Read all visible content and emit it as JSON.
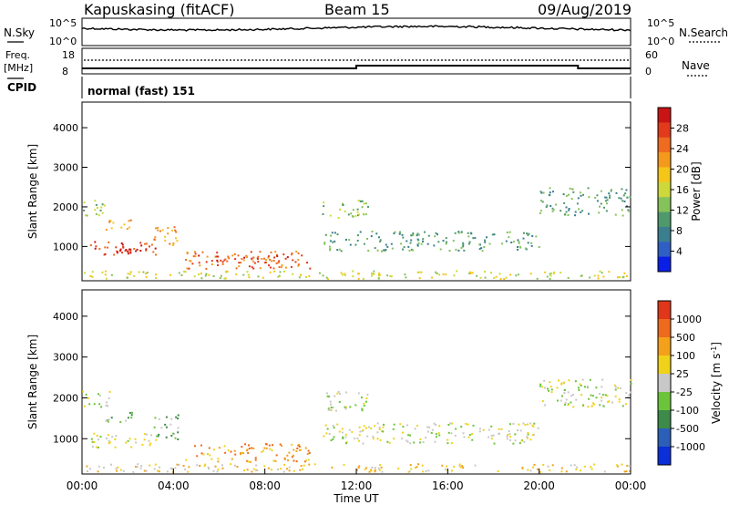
{
  "header": {
    "station": "Kapuskasing (fitACF)",
    "beam": "Beam 15",
    "date": "09/Aug/2019"
  },
  "panels": {
    "nsky": {
      "label": "N.Sky",
      "right_label": "N.Search",
      "left_ticks": [
        "10^5",
        "10^0"
      ],
      "right_ticks": [
        "10^5",
        "10^0"
      ]
    },
    "freq": {
      "label_top": "Freq.",
      "label_unit": "[MHz]",
      "right_label": "Nave",
      "left_ticks": [
        "18",
        "8"
      ],
      "right_ticks": [
        "60",
        "0"
      ],
      "freq_mhz": [
        10.0,
        10.0,
        10.0,
        10.0,
        10.0,
        10.0,
        10.0,
        10.0,
        10.0,
        10.0,
        10.0,
        10.0,
        10.0,
        10.0,
        10.0,
        10.0,
        10.0,
        10.0,
        10.0,
        10.0,
        10.0,
        10.0,
        10.0,
        10.0,
        10.0,
        10.0,
        10.0,
        10.0,
        10.0,
        10.0,
        10.0,
        10.0,
        10.0,
        10.0,
        10.0,
        10.0,
        10.0,
        10.0,
        10.0,
        10.0,
        10.0,
        10.0,
        10.0,
        10.0,
        10.0,
        10.0,
        10.0,
        10.0,
        10.0,
        10.0
      ],
      "freq_change_hours": [
        12.0,
        21.7
      ]
    },
    "cpid": {
      "label": "CPID",
      "value": "normal (fast) 151"
    }
  },
  "colorbars": {
    "power": {
      "title": "Power [dB]",
      "ticks": [
        "28",
        "24",
        "20",
        "16",
        "12",
        "8",
        "4"
      ],
      "colors": [
        "#0a1fe6",
        "#2f5fc4",
        "#3b7f8f",
        "#4f9a6d",
        "#86c25a",
        "#cdd93a",
        "#f5c518",
        "#f39a1d",
        "#ee6b1f",
        "#e23a1c",
        "#c81414"
      ]
    },
    "velocity": {
      "title": "Velocity [m s^-1]",
      "ticks": [
        "1000",
        "500",
        "100",
        "25",
        "-25",
        "-100",
        "-500",
        "-1000"
      ],
      "colors": [
        "#0b2fd8",
        "#2c5fb8",
        "#3d8a4a",
        "#6cc43a",
        "#c8c8c8",
        "#f0d21a",
        "#f3a11a",
        "#ee6a1d",
        "#e0361a"
      ]
    }
  },
  "chart_data": [
    {
      "type": "heatmap",
      "quantity": "Power",
      "ylabel": "Slant Range [km]",
      "xlabel": "",
      "ylim": [
        180,
        4600
      ],
      "yticks": [
        1000,
        2000,
        3000,
        4000
      ],
      "x_range_hours": [
        0,
        24
      ],
      "regions": [
        {
          "t": [
            0.0,
            1.2
          ],
          "r": [
            1800,
            2200
          ],
          "lvl": 4
        },
        {
          "t": [
            1.0,
            2.2
          ],
          "r": [
            1400,
            1700
          ],
          "lvl": 7
        },
        {
          "t": [
            0.3,
            3.3
          ],
          "r": [
            800,
            1150
          ],
          "lvl": 9
        },
        {
          "t": [
            1.5,
            2.5
          ],
          "r": [
            850,
            950
          ],
          "lvl": 10
        },
        {
          "t": [
            3.0,
            4.2
          ],
          "r": [
            1000,
            1600
          ],
          "lvl": 7
        },
        {
          "t": [
            4.5,
            10.0
          ],
          "r": [
            450,
            900
          ],
          "lvl": 8
        },
        {
          "t": [
            5.0,
            9.5
          ],
          "r": [
            600,
            800
          ],
          "lvl": 9
        },
        {
          "t": [
            10.5,
            20.0
          ],
          "r": [
            900,
            1400
          ],
          "lvl": 3
        },
        {
          "t": [
            10.5,
            12.5
          ],
          "r": [
            1700,
            2200
          ],
          "lvl": 4
        },
        {
          "t": [
            20.0,
            24.0
          ],
          "r": [
            1800,
            2500
          ],
          "lvl": 3
        },
        {
          "t": [
            0.0,
            24.0
          ],
          "r": [
            200,
            400
          ],
          "lvl": 5
        }
      ]
    },
    {
      "type": "heatmap",
      "quantity": "Velocity",
      "ylabel": "Slant Range [km]",
      "xlabel": "Time UT",
      "ylim": [
        180,
        4600
      ],
      "yticks": [
        1000,
        2000,
        3000,
        4000
      ],
      "x_range_hours": [
        0,
        24
      ],
      "xticks": [
        "00:00",
        "04:00",
        "08:00",
        "12:00",
        "16:00",
        "20:00",
        "00:00"
      ],
      "regions": [
        {
          "t": [
            0.0,
            1.2
          ],
          "r": [
            1800,
            2200
          ],
          "lvl": 4
        },
        {
          "t": [
            1.0,
            2.2
          ],
          "r": [
            1400,
            1700
          ],
          "lvl": 3
        },
        {
          "t": [
            0.3,
            3.3
          ],
          "r": [
            800,
            1150
          ],
          "lvl": 4
        },
        {
          "t": [
            3.0,
            4.2
          ],
          "r": [
            1000,
            1600
          ],
          "lvl": 3
        },
        {
          "t": [
            4.5,
            10.0
          ],
          "r": [
            450,
            900
          ],
          "lvl": 6
        },
        {
          "t": [
            10.5,
            20.0
          ],
          "r": [
            900,
            1400
          ],
          "lvl": 4
        },
        {
          "t": [
            10.5,
            12.5
          ],
          "r": [
            1700,
            2200
          ],
          "lvl": 4
        },
        {
          "t": [
            20.0,
            24.0
          ],
          "r": [
            1800,
            2500
          ],
          "lvl": 4
        },
        {
          "t": [
            0.0,
            24.0
          ],
          "r": [
            200,
            400
          ],
          "lvl": 5
        }
      ]
    }
  ]
}
